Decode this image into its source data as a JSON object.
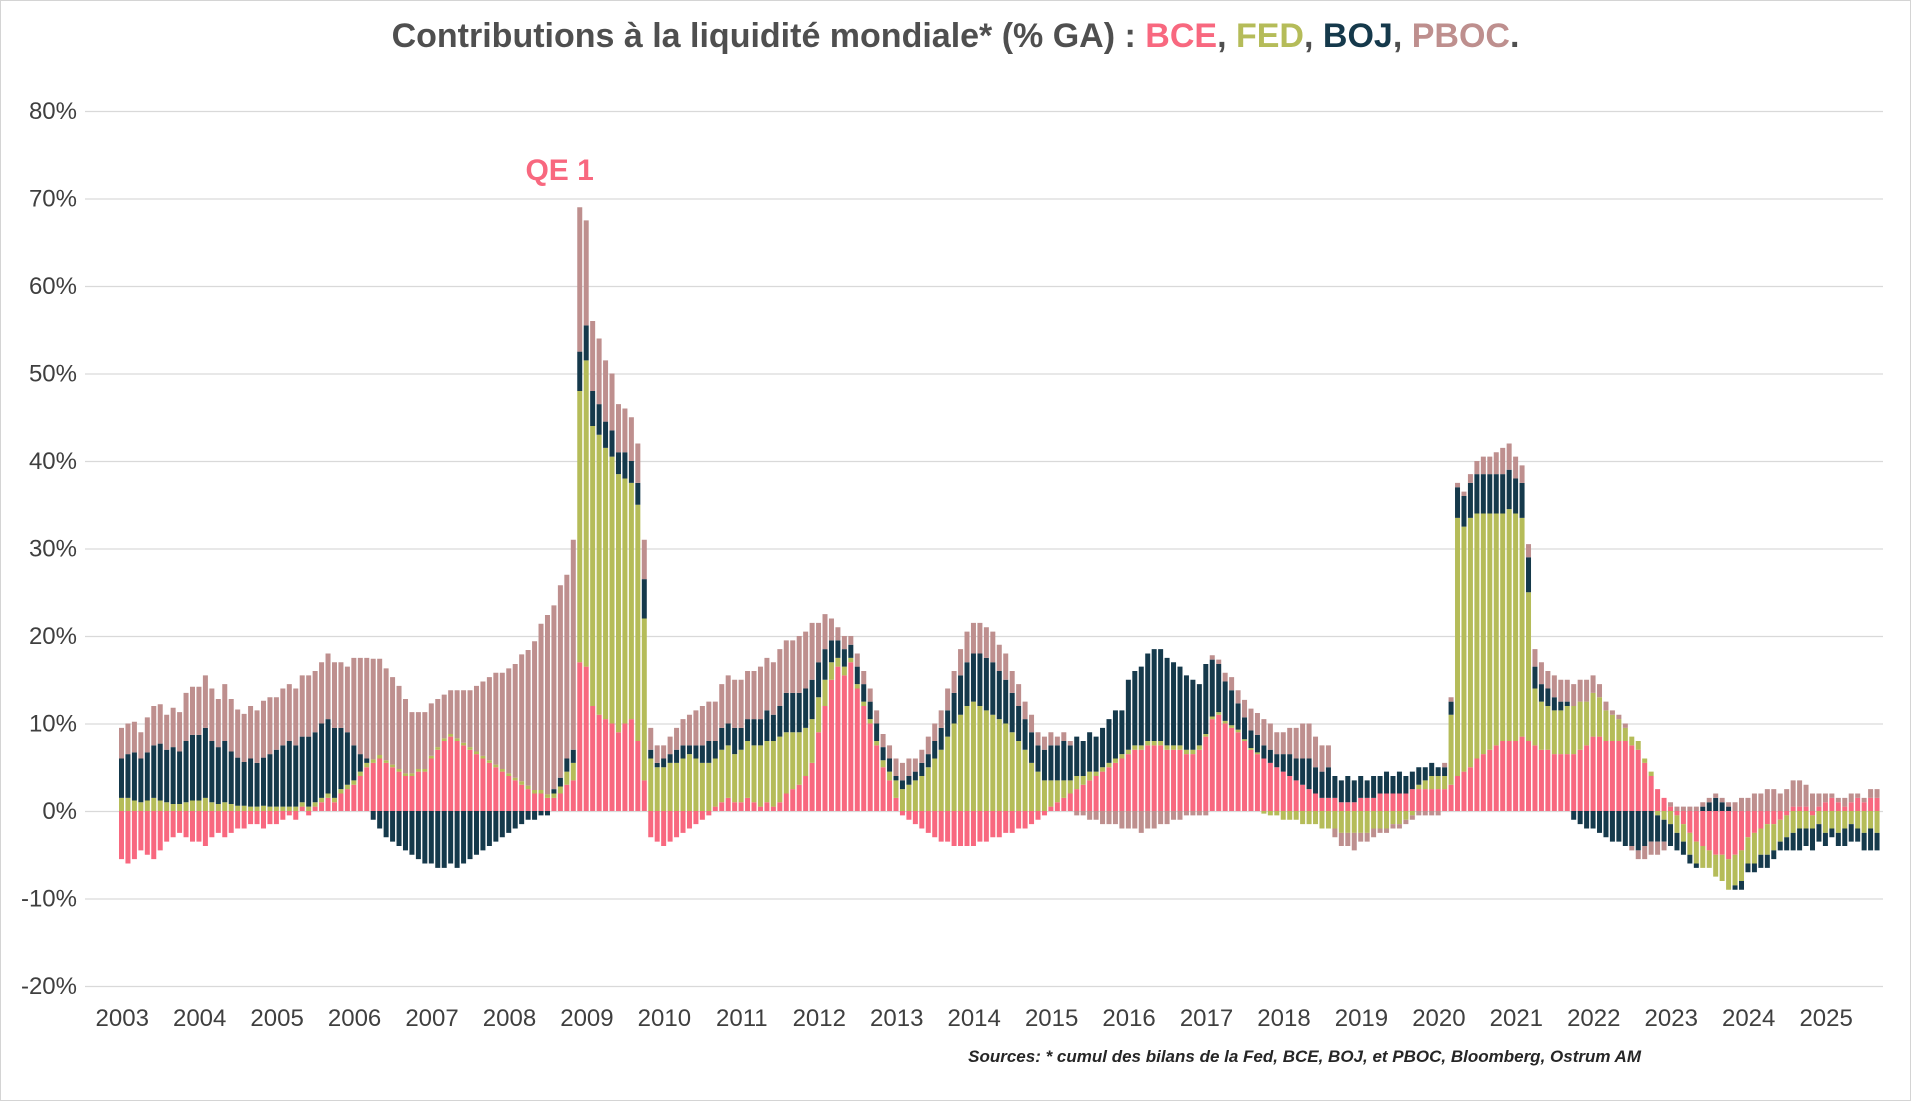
{
  "title": {
    "prefix": "Contributions à la liquidité mondiale* (% GA) : ",
    "bce": "BCE",
    "fed": "FED",
    "boj": "BOJ",
    "pboc": "PBOC",
    "sep": ", ",
    "suffix": "."
  },
  "footer": {
    "source_text": "Sources: * cumul des bilans de la Fed, BCE, BOJ, et PBOC, Bloomberg, Ostrum AM"
  },
  "colors": {
    "bce": "#F8687F",
    "fed": "#B5BC59",
    "boj": "#15394B",
    "pboc": "#BE8F8E",
    "gridline": "#d9d9d9",
    "axis_text": "#3f3f3f",
    "title_text": "#4f4f4f"
  },
  "chart_data": {
    "type": "bar",
    "stacked": true,
    "title": "Contributions à la liquidité mondiale* (% GA) : BCE, FED, BOJ, PBOC.",
    "x_start_month": "2003-01",
    "x_end_month": "2025-09",
    "x_frequency": "monthly",
    "x_tick_labels": [
      "2003",
      "2004",
      "2005",
      "2006",
      "2007",
      "2008",
      "2009",
      "2010",
      "2011",
      "2012",
      "2013",
      "2014",
      "2015",
      "2016",
      "2017",
      "2018",
      "2019",
      "2020",
      "2021",
      "2022",
      "2023",
      "2024",
      "2025"
    ],
    "y_tick_labels": [
      "80%",
      "70%",
      "60%",
      "50%",
      "40%",
      "30%",
      "20%",
      "10%",
      "0%",
      "-10%",
      "-20%"
    ],
    "ylim": [
      -20,
      80
    ],
    "unit": "%",
    "grid": true,
    "legend_position": "in-title",
    "annotation": {
      "text": "QE 1",
      "x_month": "2008-12",
      "month_index": 71,
      "y_pct": 73
    },
    "series": [
      {
        "name": "BCE",
        "color": "#F8687F",
        "values": [
          -5.5,
          -6,
          -5.5,
          -4.5,
          -5,
          -5.5,
          -4.5,
          -3.5,
          -3,
          -2.5,
          -3,
          -3.5,
          -3.5,
          -4,
          -3,
          -2.5,
          -3,
          -2.5,
          -2,
          -2,
          -1.5,
          -1.5,
          -2,
          -1.5,
          -1.5,
          -1,
          -0.5,
          -1,
          0.5,
          -0.5,
          0.5,
          1,
          1.5,
          1,
          2,
          2.5,
          3,
          4,
          5,
          5.5,
          6,
          5.5,
          5,
          4.5,
          4,
          4,
          4.5,
          4.5,
          6,
          7,
          8,
          8.5,
          8,
          7.5,
          7,
          6.5,
          6,
          5.5,
          5,
          4.5,
          4,
          3.5,
          3,
          2.5,
          2,
          2,
          1.5,
          1.5,
          2,
          3,
          3.5,
          17,
          16.5,
          12,
          11,
          10.5,
          10,
          9,
          10,
          10.5,
          8,
          3.5,
          -3,
          -3.5,
          -4,
          -3.5,
          -3,
          -2.5,
          -2,
          -1.5,
          -1,
          -0.5,
          0.5,
          1,
          1.5,
          1,
          1,
          1.5,
          1,
          0.5,
          1,
          0.5,
          1,
          2,
          2.5,
          3,
          4,
          5.5,
          9,
          12,
          15,
          16.5,
          15.5,
          17,
          14,
          12,
          10,
          7.5,
          5,
          3.5,
          1.5,
          -0.5,
          -1,
          -1.5,
          -2,
          -2.5,
          -3,
          -3.5,
          -3.5,
          -4,
          -4,
          -4,
          -4,
          -3.5,
          -3.5,
          -3,
          -3,
          -2.5,
          -2.5,
          -2,
          -2,
          -1.5,
          -1,
          -0.5,
          0.5,
          1,
          1.5,
          2,
          2.5,
          3,
          3.5,
          4,
          4.5,
          5,
          5.5,
          6,
          6.5,
          7,
          7,
          7.5,
          7.5,
          7.5,
          7,
          7,
          7,
          6.5,
          6.5,
          7,
          8.5,
          10.5,
          11,
          10,
          9.5,
          9,
          8,
          7,
          6.5,
          6,
          5.5,
          5,
          4.5,
          4,
          3.5,
          3,
          2.5,
          2,
          1.5,
          1.5,
          1.5,
          1,
          1,
          1,
          1.5,
          1.5,
          1.5,
          2,
          2,
          2,
          2,
          2,
          2.5,
          2.5,
          2.5,
          2.5,
          2.5,
          2.5,
          3,
          4,
          4.5,
          5,
          6,
          6.5,
          7,
          7.5,
          8,
          8,
          8,
          8.5,
          8,
          7.5,
          7,
          7,
          6.5,
          6.5,
          6.5,
          6.5,
          7,
          7.5,
          8.5,
          8.5,
          8,
          8,
          8,
          8,
          7.5,
          7,
          5.5,
          4,
          2.5,
          1.5,
          0.5,
          -0.5,
          -1.5,
          -2.5,
          -3.5,
          -4,
          -4.5,
          -5,
          -5,
          -5.5,
          -5,
          -4.5,
          -3,
          -2.5,
          -2,
          -1.5,
          -1.5,
          -1,
          -0.5,
          0.5,
          0.5,
          0.5,
          -0.5,
          0.5,
          1,
          1.5,
          1,
          0.5,
          1,
          1.5,
          1,
          1.5,
          1.5
        ]
      },
      {
        "name": "FED",
        "color": "#B5BC59",
        "values": [
          1.5,
          1.5,
          1.2,
          1,
          1.2,
          1.5,
          1.2,
          1,
          0.8,
          0.8,
          1,
          1.2,
          1.2,
          1.5,
          1,
          0.8,
          1,
          0.8,
          0.6,
          0.6,
          0.5,
          0.5,
          0.6,
          0.5,
          0.5,
          0.5,
          0.5,
          0.5,
          0.5,
          0.5,
          0.5,
          0.5,
          0.5,
          0.5,
          0.5,
          0.5,
          0.5,
          0.5,
          0.5,
          0.4,
          0.4,
          0.3,
          0.3,
          0.3,
          0.3,
          0.3,
          0.3,
          0.3,
          0.3,
          0.3,
          0.3,
          0.3,
          0.3,
          0.3,
          0.3,
          0.3,
          0.3,
          0.3,
          0.3,
          0.3,
          0.3,
          0.3,
          0.4,
          0.4,
          0.4,
          0.4,
          0.4,
          0.5,
          0.8,
          1.5,
          2,
          31,
          35,
          32,
          32,
          31,
          30.5,
          29.5,
          28,
          27,
          27,
          18.5,
          6,
          5,
          5,
          5.5,
          5.5,
          6,
          6.5,
          6,
          5.5,
          5.5,
          5.5,
          6,
          6,
          5.5,
          6,
          6.5,
          6.5,
          7,
          7,
          7.5,
          7.5,
          7,
          6.5,
          6,
          5.5,
          5,
          4,
          3,
          2,
          1,
          1,
          0.5,
          0.5,
          0.5,
          0.5,
          0.5,
          0.8,
          1,
          2,
          2.5,
          3,
          3.5,
          4,
          5,
          6,
          7,
          8.5,
          10,
          11,
          12,
          12.5,
          12,
          11.5,
          11,
          10.5,
          10,
          9,
          8,
          7,
          5.5,
          4.5,
          3.5,
          3,
          2.5,
          2,
          1.5,
          1.5,
          1,
          1,
          0.5,
          0.5,
          0.5,
          0.5,
          0.5,
          0.5,
          0.5,
          0.5,
          0.5,
          0.5,
          0.5,
          0.5,
          0.5,
          0.5,
          0.5,
          0.5,
          0.5,
          0.3,
          0.3,
          0.3,
          0.3,
          0.3,
          0.3,
          0.2,
          0.2,
          0.2,
          -0.3,
          -0.5,
          -0.5,
          -1,
          -1,
          -1,
          -1.5,
          -1.5,
          -1.5,
          -2,
          -2,
          -2,
          -2.5,
          -2.5,
          -2.5,
          -2.5,
          -2.5,
          -2,
          -2,
          -2,
          -1.5,
          -1.5,
          -1,
          -0.5,
          0.5,
          1,
          1.5,
          1.5,
          1.5,
          8,
          29.5,
          28,
          28.5,
          28,
          27.5,
          27,
          26.5,
          26,
          26.5,
          26,
          25,
          17,
          6.5,
          5.5,
          5,
          5,
          5,
          5.5,
          5.5,
          5.5,
          5,
          5,
          4.5,
          3.5,
          3,
          2.5,
          1.5,
          1,
          1,
          0.5,
          0.5,
          -0.5,
          -1,
          -1.5,
          -2,
          -2,
          -2.5,
          -2.5,
          -2.5,
          -2,
          -2.5,
          -3,
          -3.5,
          -3.5,
          -3.5,
          -3,
          -3.5,
          -3,
          -3.5,
          -3,
          -2.5,
          -2.5,
          -2.5,
          -2,
          -2,
          -1.5,
          -1.5,
          -2.5,
          -2,
          -2.5,
          -2,
          -1.5,
          -2,
          -2.5,
          -2,
          -2.5
        ]
      },
      {
        "name": "BOJ",
        "color": "#15394B",
        "values": [
          4.5,
          5,
          5.5,
          5,
          5.5,
          6,
          6.5,
          6,
          6.5,
          6,
          7,
          7.5,
          7.5,
          8,
          7,
          6.5,
          7,
          6,
          5.5,
          5,
          5.5,
          5,
          5.5,
          6,
          6.5,
          7,
          7.5,
          7,
          7.5,
          8,
          8,
          8.5,
          8.5,
          8,
          7,
          6,
          4,
          2,
          0.5,
          -1,
          -2,
          -3,
          -3.5,
          -4,
          -4.5,
          -5,
          -5.5,
          -6,
          -6,
          -6.5,
          -6.5,
          -6,
          -6.5,
          -6,
          -5.5,
          -5,
          -4.5,
          -4,
          -3.5,
          -3,
          -2.5,
          -2,
          -1.5,
          -1,
          -1,
          -0.5,
          -0.5,
          0.5,
          1,
          1.5,
          1.5,
          4.5,
          4,
          4,
          3.5,
          3,
          3,
          2.5,
          3,
          2.5,
          2.5,
          4.5,
          1,
          0.5,
          1,
          1,
          1.5,
          1.5,
          1,
          1.5,
          2,
          2.5,
          2,
          2.5,
          2.5,
          3,
          2.5,
          2.5,
          3,
          3,
          3.5,
          3,
          3.5,
          4.5,
          4.5,
          4.5,
          4.5,
          4.5,
          4,
          3.5,
          2.5,
          2,
          2,
          1.5,
          2,
          2,
          2,
          2,
          1.5,
          1.5,
          0.5,
          1,
          1,
          1,
          1.5,
          1.5,
          2,
          2.5,
          3,
          3.5,
          4.5,
          5,
          5.5,
          6,
          6,
          6,
          5.5,
          5,
          4.5,
          4,
          3.5,
          3.5,
          3,
          3.5,
          4,
          4,
          4.5,
          4,
          4.5,
          4,
          4.5,
          4,
          4.5,
          5,
          5.5,
          5,
          8,
          8.5,
          9,
          10,
          10.5,
          10.5,
          10,
          9.5,
          9,
          8.5,
          8,
          7,
          8,
          6.5,
          5.5,
          4.5,
          4,
          3,
          2.5,
          2,
          2,
          1.5,
          1.5,
          1.5,
          2,
          2.5,
          2.5,
          3,
          3.5,
          3,
          3,
          3.5,
          2.5,
          2.5,
          3,
          2.5,
          2.5,
          2,
          2.5,
          2,
          2.5,
          2,
          2.5,
          2,
          2,
          2,
          1.5,
          1.5,
          1,
          1,
          1.5,
          3.5,
          3.5,
          4,
          4.5,
          4.5,
          4.5,
          4.5,
          4.5,
          4.5,
          4,
          4,
          4,
          2.5,
          2,
          2,
          1.5,
          1,
          0.5,
          -1,
          -1.5,
          -2,
          -2,
          -2.5,
          -3,
          -3.5,
          -3.5,
          -4,
          -4,
          -4.5,
          -4,
          -3.5,
          -3,
          -2.5,
          -2.5,
          -2,
          -1.5,
          -1,
          -0.5,
          0.5,
          1,
          1.5,
          1,
          0.5,
          -0.5,
          -1,
          -1,
          -1,
          -1.5,
          -1.5,
          -1,
          -1,
          -1.5,
          -2,
          -2.5,
          -2,
          -2.5,
          -2,
          -1.5,
          -1,
          -1.5,
          -2,
          -2,
          -1.5,
          -2,
          -2.5,
          -2
        ]
      },
      {
        "name": "PBOC",
        "color": "#BE8F8E",
        "values": [
          3.5,
          3.5,
          3.5,
          3,
          4,
          4.5,
          4.5,
          4,
          4.5,
          4.5,
          5.5,
          5.5,
          5.5,
          6,
          6,
          5.5,
          6.5,
          6,
          5.5,
          5.5,
          6,
          6,
          6.5,
          6.5,
          6,
          6.5,
          6.5,
          6.5,
          7,
          7,
          7,
          7,
          7.5,
          7.5,
          7.5,
          7.5,
          10,
          11,
          11.5,
          11.5,
          11,
          10.5,
          10,
          9.5,
          8.5,
          7,
          6.5,
          6.5,
          6,
          5.5,
          5,
          5,
          5.5,
          6,
          6.5,
          7.5,
          8.5,
          9.5,
          10.5,
          11,
          12,
          13,
          14.5,
          15.5,
          17,
          19,
          20.5,
          21,
          22,
          21,
          24,
          16.5,
          12,
          8,
          7.5,
          7,
          6.5,
          5.5,
          5,
          5,
          4.5,
          4.5,
          2.5,
          2,
          1.5,
          2,
          2.5,
          3,
          3.5,
          4,
          4.5,
          4.5,
          4.5,
          5,
          5.5,
          5.5,
          5.5,
          5.5,
          5.5,
          6,
          6,
          6,
          6.5,
          6,
          6,
          6.5,
          6.5,
          6.5,
          4.5,
          4,
          2.5,
          1.5,
          1.5,
          1,
          1.5,
          1.5,
          1.5,
          1.5,
          1.5,
          1.5,
          2,
          2,
          2,
          1.5,
          1.5,
          2,
          2,
          2,
          2.5,
          2.5,
          3,
          3.5,
          3.5,
          3.5,
          3.5,
          3.5,
          3,
          3,
          2.5,
          2.5,
          2,
          2,
          1.5,
          1.5,
          1.5,
          1,
          1,
          0.5,
          -0.5,
          -0.5,
          -1,
          -1,
          -1.5,
          -1.5,
          -1.5,
          -2,
          -2,
          -2,
          -2.5,
          -2,
          -2,
          -1.5,
          -1.5,
          -1,
          -1,
          -0.5,
          -0.5,
          -0.5,
          -0.5,
          0.5,
          0.5,
          1,
          1.5,
          1.5,
          2,
          2.5,
          2.5,
          3,
          3,
          2.5,
          2.5,
          3,
          3.5,
          4,
          4,
          3.5,
          3,
          2.5,
          -1,
          -1.5,
          -1.5,
          -2,
          -1,
          -1,
          -1,
          -0.5,
          -0.5,
          -0.5,
          -0.5,
          -0.5,
          -0.5,
          -0.5,
          -0.5,
          -0.5,
          -0.5,
          0.5,
          0.5,
          0.5,
          0.5,
          1,
          1.5,
          2,
          2,
          2.5,
          3,
          3,
          2.5,
          2,
          1.5,
          2,
          2.5,
          2,
          2.5,
          2.5,
          2.5,
          2.5,
          2.5,
          2.5,
          2,
          1.5,
          1,
          0.5,
          0.5,
          0.5,
          -0.5,
          -1,
          -1.5,
          -1.5,
          -1.5,
          -1,
          0.5,
          0.5,
          0.5,
          0.5,
          0.5,
          0.5,
          0.5,
          0.5,
          0.5,
          0.5,
          1,
          1.5,
          1.5,
          2,
          2,
          2.5,
          2.5,
          2,
          2.5,
          3,
          3,
          2.5,
          2,
          1.5,
          1,
          0.5,
          0.5,
          1,
          1,
          0.5,
          0.5,
          1,
          1
        ]
      }
    ]
  }
}
